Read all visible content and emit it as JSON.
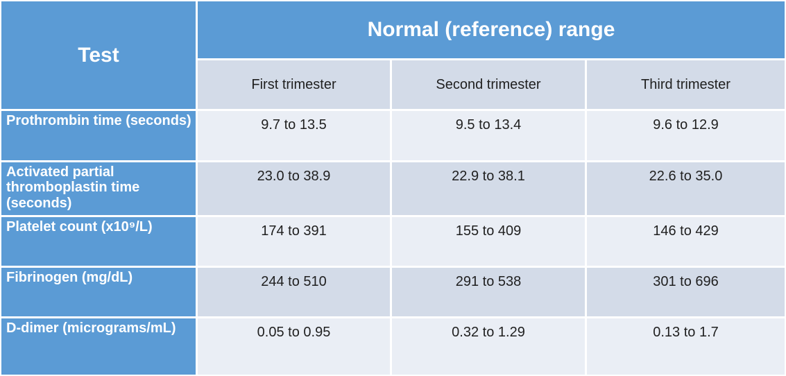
{
  "chart_data": {
    "type": "table",
    "corner_header": "Test",
    "group_header": "Normal (reference) range",
    "column_headers": [
      "First trimester",
      "Second trimester",
      "Third trimester"
    ],
    "rows": [
      {
        "label": "Prothrombin time (seconds)",
        "values": [
          "9.7 to 13.5",
          "9.5 to 13.4",
          "9.6 to 12.9"
        ]
      },
      {
        "label": "Activated partial thromboplastin time (seconds)",
        "values": [
          "23.0 to 38.9",
          "22.9 to 38.1",
          "22.6 to 35.0"
        ]
      },
      {
        "label": "Platelet count (x10⁹/L)",
        "values": [
          "174 to 391",
          "155 to 409",
          "146 to 429"
        ]
      },
      {
        "label": "Fibrinogen (mg/dL)",
        "values": [
          "244 to 510",
          "291 to 538",
          "301 to 696"
        ]
      },
      {
        "label": "D-dimer (micrograms/mL)",
        "values": [
          "0.05 to 0.95",
          "0.32 to 1.29",
          "0.13 to 1.7"
        ]
      }
    ],
    "layout_hints": {
      "banded_rows": true,
      "band_pattern": [
        "light",
        "dark",
        "light",
        "dark",
        "light"
      ]
    }
  },
  "colors": {
    "header_blue": "#5B9BD5",
    "band_light": "#EAEEF5",
    "band_dark": "#D3DBE8",
    "separator": "#FFFFFF"
  }
}
